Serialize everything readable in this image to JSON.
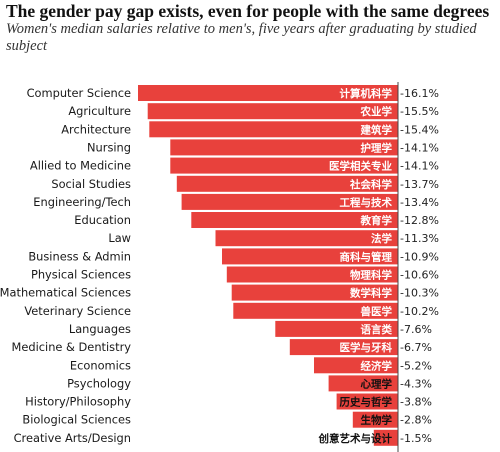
{
  "header": {
    "title": "The gender pay gap exists, even for people with the same degrees",
    "subtitle": "Women's median salaries relative to men's, five years after graduating by studied subject"
  },
  "colors": {
    "bar": "#e8413c",
    "axis": "#444444",
    "background": "#ffffff"
  },
  "chart_data": {
    "type": "bar",
    "orientation": "horizontal",
    "title": "The gender pay gap exists, even for people with the same degrees",
    "subtitle": "Women's median salaries relative to men's, five years after graduating by studied subject",
    "xlim": [
      -16.1,
      0
    ],
    "unit": "%",
    "categories": [
      "Computer Science",
      "Agriculture",
      "Architecture",
      "Nursing",
      "Allied to Medicine",
      "Social Studies",
      "Engineering/Tech",
      "Education",
      "Law",
      "Business & Admin",
      "Physical Sciences",
      "Mathematical Sciences",
      "Veterinary Science",
      "Languages",
      "Medicine & Dentistry",
      "Economics",
      "Psychology",
      "History/Philosophy",
      "Biological Sciences",
      "Creative Arts/Design"
    ],
    "chinese_labels": [
      "计算机科学",
      "农业学",
      "建筑学",
      "护理学",
      "医学相关专业",
      "社会科学",
      "工程与技术",
      "教育学",
      "法学",
      "商科与管理",
      "物理科学",
      "数学科学",
      "兽医学",
      "语言类",
      "医学与牙科",
      "经济学",
      "心理学",
      "历史与哲学",
      "生物学",
      "创意艺术与设计"
    ],
    "values": [
      -16.1,
      -15.5,
      -15.4,
      -14.1,
      -14.1,
      -13.7,
      -13.4,
      -12.8,
      -11.3,
      -10.9,
      -10.6,
      -10.3,
      -10.2,
      -7.6,
      -6.7,
      -5.2,
      -4.3,
      -3.8,
      -2.8,
      -1.5
    ],
    "value_labels": [
      "-16.1%",
      "-15.5%",
      "-15.4%",
      "-14.1%",
      "-14.1%",
      "-13.7%",
      "-13.4%",
      "-12.8%",
      "-11.3%",
      "-10.9%",
      "-10.6%",
      "-10.3%",
      "-10.2%",
      "-7.6%",
      "-6.7%",
      "-5.2%",
      "-4.3%",
      "-3.8%",
      "-2.8%",
      "-1.5%"
    ]
  }
}
